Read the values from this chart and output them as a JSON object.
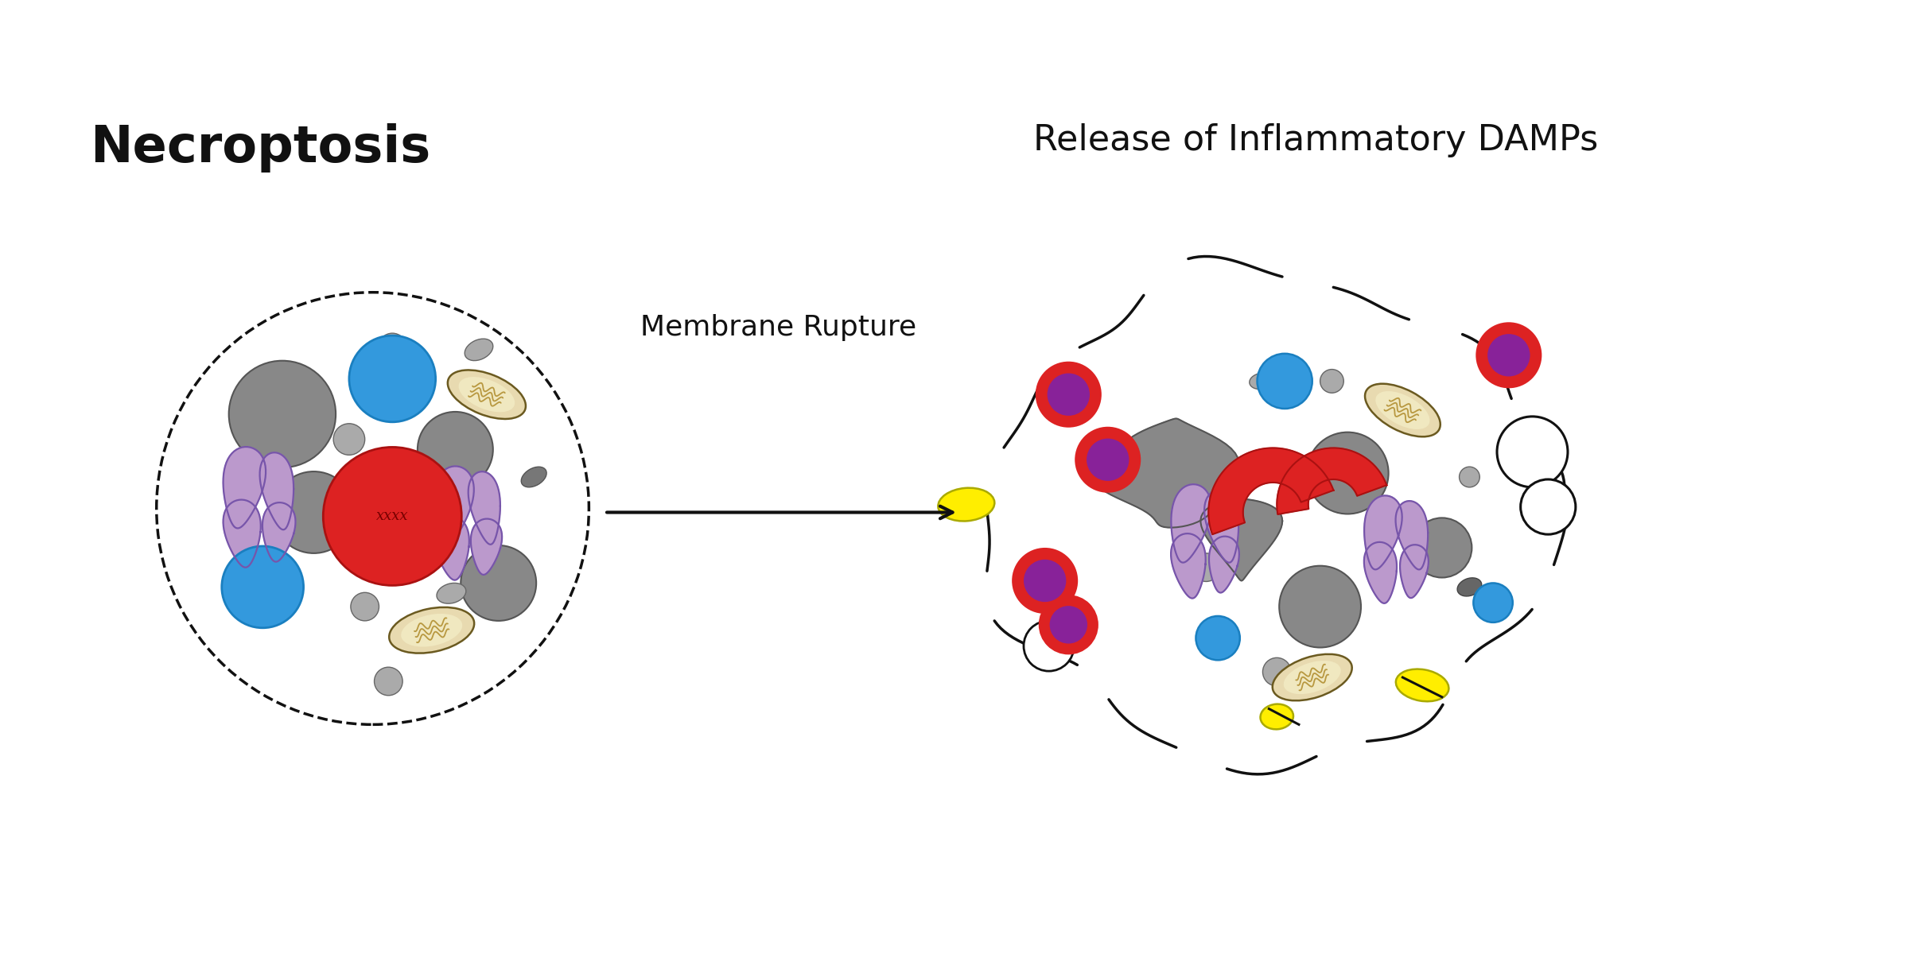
{
  "title_left": "Necroptosis",
  "title_right": "Release of Inflammatory DAMPs",
  "label_membrane": "Membrane Rupture",
  "bg_color": "#ffffff",
  "gray_color": "#888888",
  "gray_light": "#aaaaaa",
  "blue_color": "#3399dd",
  "red_color": "#dd2222",
  "purple_color": "#bb99cc",
  "purple_dark": "#7755aa",
  "mito_body": "#e8dab0",
  "mito_inner": "#f0e8c0",
  "mito_line": "#b89840",
  "damp_red": "#dd2222",
  "damp_purple": "#882299",
  "yellow_color": "#ffee00",
  "black": "#111111"
}
